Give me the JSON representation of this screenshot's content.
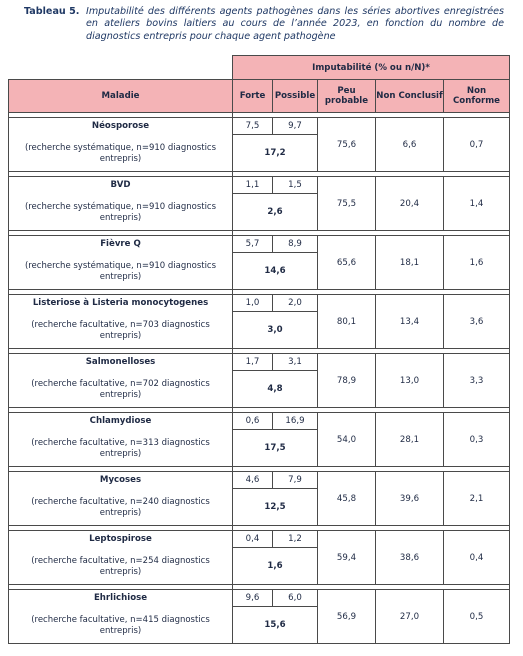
{
  "caption": {
    "label": "Tableau 5.",
    "text": "Imputabilité des différents agents pathogènes dans les séries abortives enregistrées en ateliers bovins laitiers au cours de l’année 2023, en fonction du nombre de diagnostics entrepris pour chaque agent pathogène"
  },
  "headers": {
    "group": "Imputabilité (% ou n/N)*",
    "maladie": "Maladie",
    "forte": "Forte",
    "possible": "Possible",
    "peu_probable": "Peu probable",
    "non_conclusif": "Non Conclusif",
    "non_conforme": "Non Conforme"
  },
  "rows": [
    {
      "name": "Néosporose",
      "desc": "(recherche systématique, n=910 diagnostics entrepris)",
      "forte": "7,5",
      "possible": "9,7",
      "total": "17,2",
      "peu_probable": "75,6",
      "non_conclusif": "6,6",
      "non_conforme": "0,7"
    },
    {
      "name": "BVD",
      "desc": "(recherche systématique, n=910 diagnostics entrepris)",
      "forte": "1,1",
      "possible": "1,5",
      "total": "2,6",
      "peu_probable": "75,5",
      "non_conclusif": "20,4",
      "non_conforme": "1,4"
    },
    {
      "name": "Fièvre Q",
      "desc": "(recherche systématique, n=910 diagnostics entrepris)",
      "forte": "5,7",
      "possible": "8,9",
      "total": "14,6",
      "peu_probable": "65,6",
      "non_conclusif": "18,1",
      "non_conforme": "1,6"
    },
    {
      "name": "Listeriose à Listeria monocytogenes",
      "desc": "(recherche facultative, n=703 diagnostics entrepris)",
      "forte": "1,0",
      "possible": "2,0",
      "total": "3,0",
      "peu_probable": "80,1",
      "non_conclusif": "13,4",
      "non_conforme": "3,6"
    },
    {
      "name": "Salmonelloses",
      "desc": "(recherche facultative, n=702 diagnostics entrepris)",
      "forte": "1,7",
      "possible": "3,1",
      "total": "4,8",
      "peu_probable": "78,9",
      "non_conclusif": "13,0",
      "non_conforme": "3,3"
    },
    {
      "name": "Chlamydiose",
      "desc": "(recherche facultative, n=313 diagnostics entrepris)",
      "forte": "0,6",
      "possible": "16,9",
      "total": "17,5",
      "peu_probable": "54,0",
      "non_conclusif": "28,1",
      "non_conforme": "0,3"
    },
    {
      "name": "Mycoses",
      "desc": "(recherche facultative, n=240 diagnostics entrepris)",
      "forte": "4,6",
      "possible": "7,9",
      "total": "12,5",
      "peu_probable": "45,8",
      "non_conclusif": "39,6",
      "non_conforme": "2,1"
    },
    {
      "name": "Leptospirose",
      "desc": "(recherche facultative, n=254 diagnostics entrepris)",
      "forte": "0,4",
      "possible": "1,2",
      "total": "1,6",
      "peu_probable": "59,4",
      "non_conclusif": "38,6",
      "non_conforme": "0,4"
    },
    {
      "name": "Ehrlichiose",
      "desc": "(recherche facultative, n=415 diagnostics entrepris)",
      "forte": "9,6",
      "possible": "6,0",
      "total": "15,6",
      "peu_probable": "56,9",
      "non_conclusif": "27,0",
      "non_conforme": "0,5"
    }
  ]
}
